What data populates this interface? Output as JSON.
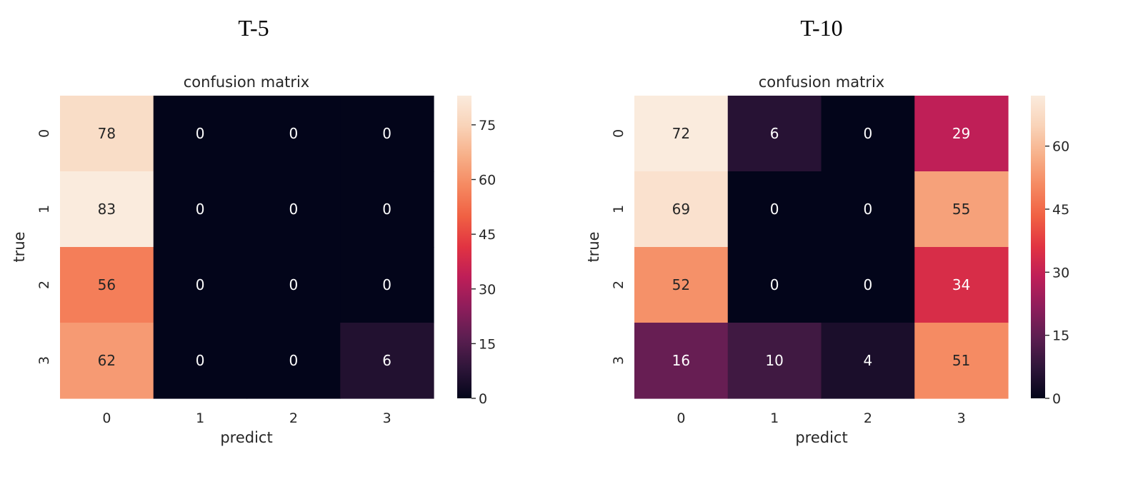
{
  "panels": [
    {
      "label": "T-5"
    },
    {
      "label": "T-10"
    }
  ],
  "colormap": [
    "#03051a",
    "#2e1539",
    "#5c1e51",
    "#8e1d5b",
    "#be1e58",
    "#e13342",
    "#f06043",
    "#f58860",
    "#f7af88",
    "#f9d3b8",
    "#faebdd"
  ],
  "chart_data": [
    {
      "type": "heatmap",
      "title": "confusion matrix",
      "xlabel": "predict",
      "ylabel": "true",
      "x_categories": [
        "0",
        "1",
        "2",
        "3"
      ],
      "y_categories": [
        "0",
        "1",
        "2",
        "3"
      ],
      "values": [
        [
          78,
          0,
          0,
          0
        ],
        [
          83,
          0,
          0,
          0
        ],
        [
          56,
          0,
          0,
          0
        ],
        [
          62,
          0,
          0,
          6
        ]
      ],
      "vmin": 0,
      "vmax": 83,
      "colorbar_ticks": [
        0,
        15,
        30,
        45,
        60,
        75
      ]
    },
    {
      "type": "heatmap",
      "title": "confusion matrix",
      "xlabel": "predict",
      "ylabel": "true",
      "x_categories": [
        "0",
        "1",
        "2",
        "3"
      ],
      "y_categories": [
        "0",
        "1",
        "2",
        "3"
      ],
      "values": [
        [
          72,
          6,
          0,
          29
        ],
        [
          69,
          0,
          0,
          55
        ],
        [
          52,
          0,
          0,
          34
        ],
        [
          16,
          10,
          4,
          51
        ]
      ],
      "vmin": 0,
      "vmax": 72,
      "colorbar_ticks": [
        0,
        15,
        30,
        45,
        60
      ]
    }
  ]
}
